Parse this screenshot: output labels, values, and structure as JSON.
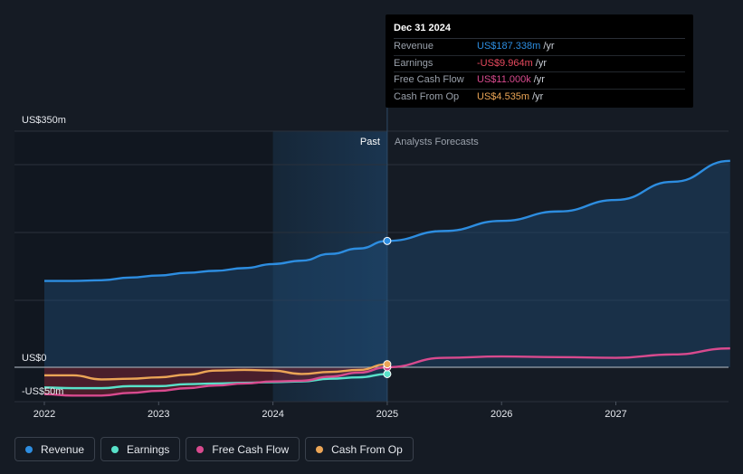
{
  "chart_data": {
    "type": "line",
    "y_axis_labels": {
      "top": "US$350m",
      "zero": "US$0",
      "bottom": "-US$50m"
    },
    "ylim": [
      -50,
      350
    ],
    "xlim": [
      2021.8,
      2028.0
    ],
    "x_ticks": [
      "2022",
      "2023",
      "2024",
      "2025",
      "2026",
      "2027"
    ],
    "x_tick_values": [
      2022,
      2023,
      2024,
      2025,
      2026,
      2027
    ],
    "past_label": "Past",
    "forecast_label": "Analysts Forecasts",
    "divider_x": 2025.0,
    "highlight_start_x": 2024.0,
    "series": [
      {
        "name": "Revenue",
        "color": "#2d8de0",
        "x": [
          2022.0,
          2022.25,
          2022.5,
          2022.75,
          2023.0,
          2023.25,
          2023.5,
          2023.75,
          2024.0,
          2024.25,
          2024.5,
          2024.75,
          2025.0,
          2025.5,
          2026.0,
          2026.5,
          2027.0,
          2027.5,
          2028.0
        ],
        "values": [
          128,
          128,
          129,
          133,
          136,
          140,
          143,
          147,
          153,
          158,
          168,
          176,
          187.3,
          202,
          217,
          231,
          248,
          275,
          306
        ]
      },
      {
        "name": "Earnings",
        "color": "#58e1c9",
        "x": [
          2022.0,
          2022.25,
          2022.5,
          2022.75,
          2023.0,
          2023.25,
          2023.5,
          2023.75,
          2024.0,
          2024.25,
          2024.5,
          2024.75,
          2025.0
        ],
        "values": [
          -30,
          -31,
          -31,
          -28,
          -28,
          -25,
          -24,
          -23,
          -22,
          -21,
          -17,
          -15,
          -10
        ]
      },
      {
        "name": "Free Cash Flow",
        "color": "#d84a8e",
        "x": [
          2022.0,
          2022.25,
          2022.5,
          2022.75,
          2023.0,
          2023.25,
          2023.5,
          2023.75,
          2024.0,
          2024.25,
          2024.5,
          2024.75,
          2025.0,
          2025.5,
          2026.0,
          2026.5,
          2027.0,
          2027.5,
          2028.0
        ],
        "values": [
          -40,
          -42,
          -42,
          -38,
          -35,
          -31,
          -27,
          -24,
          -21,
          -20,
          -14,
          -8,
          0.011,
          14,
          16,
          15,
          14,
          19,
          28
        ]
      },
      {
        "name": "Cash From Op",
        "color": "#eba556",
        "x": [
          2022.0,
          2022.25,
          2022.5,
          2022.75,
          2023.0,
          2023.25,
          2023.5,
          2023.75,
          2024.0,
          2024.25,
          2024.5,
          2024.75,
          2025.0
        ],
        "values": [
          -12,
          -12,
          -18,
          -17,
          -15,
          -11,
          -5,
          -4,
          -5,
          -10,
          -7,
          -4,
          4.5
        ]
      }
    ],
    "legend": [
      "Revenue",
      "Earnings",
      "Free Cash Flow",
      "Cash From Op"
    ],
    "legend_placement": "bottom-left",
    "grid": true
  },
  "tooltip": {
    "date": "Dec 31 2024",
    "rows": [
      {
        "label": "Revenue",
        "value": "US$187.338m",
        "unit": "/yr",
        "color": "#2d8de0"
      },
      {
        "label": "Earnings",
        "value": "-US$9.964m",
        "unit": "/yr",
        "color": "#e84a5f"
      },
      {
        "label": "Free Cash Flow",
        "value": "US$11.000k",
        "unit": "/yr",
        "color": "#d84a8e"
      },
      {
        "label": "Cash From Op",
        "value": "US$4.535m",
        "unit": "/yr",
        "color": "#eba556"
      }
    ]
  }
}
